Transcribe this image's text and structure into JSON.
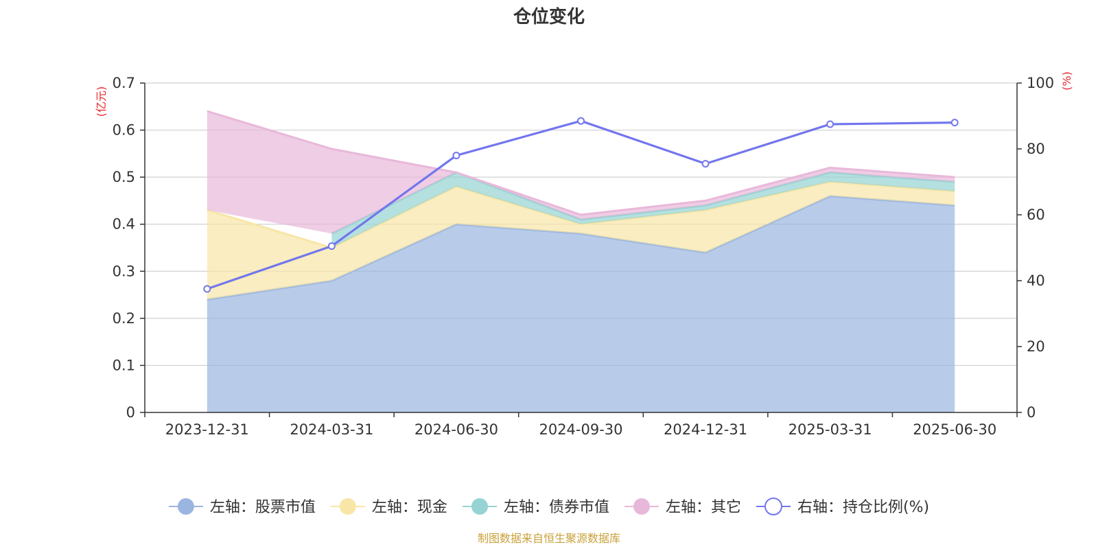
{
  "chart_data": {
    "type": "area",
    "title": "仓位变化",
    "categories": [
      "2023-12-31",
      "2024-03-31",
      "2024-06-30",
      "2024-09-30",
      "2024-12-31",
      "2025-03-31",
      "2025-06-30"
    ],
    "left_axis": {
      "unit": "(亿元)",
      "ylim": [
        0,
        0.7
      ],
      "ticks": [
        0,
        0.1,
        0.2,
        0.3,
        0.4,
        0.5,
        0.6,
        0.7
      ]
    },
    "right_axis": {
      "unit": "(%)",
      "ylim": [
        0,
        100
      ],
      "ticks": [
        0,
        20,
        40,
        60,
        80,
        100
      ]
    },
    "series": [
      {
        "name": "左轴：股票市值",
        "axis": "left",
        "type": "stacked-area",
        "color": "#9ab5e0",
        "values": [
          0.24,
          0.28,
          0.4,
          0.38,
          0.34,
          0.46,
          0.44
        ]
      },
      {
        "name": "左轴：现金",
        "axis": "left",
        "type": "stacked-area",
        "color": "#f8e6a6",
        "values": [
          0.19,
          0.07,
          0.08,
          0.02,
          0.09,
          0.03,
          0.03
        ]
      },
      {
        "name": "左轴：债券市值",
        "axis": "left",
        "type": "stacked-area",
        "color": "#96d3d3",
        "values": [
          0,
          0.03,
          0.03,
          0.01,
          0.01,
          0.02,
          0.02
        ]
      },
      {
        "name": "左轴：其它",
        "axis": "left",
        "type": "stacked-area",
        "color": "#e8b8da",
        "values": [
          0.21,
          0.18,
          0.0,
          0.01,
          0.01,
          0.01,
          0.01
        ]
      },
      {
        "name": "右轴：持仓比例(%)",
        "axis": "right",
        "type": "line",
        "color": "#7276ec",
        "values": [
          37.5,
          50.5,
          78.0,
          88.5,
          75.5,
          87.5,
          88.0
        ]
      }
    ],
    "grid": true,
    "legend_position": "bottom"
  },
  "source_note": "制图数据来自恒生聚源数据库"
}
